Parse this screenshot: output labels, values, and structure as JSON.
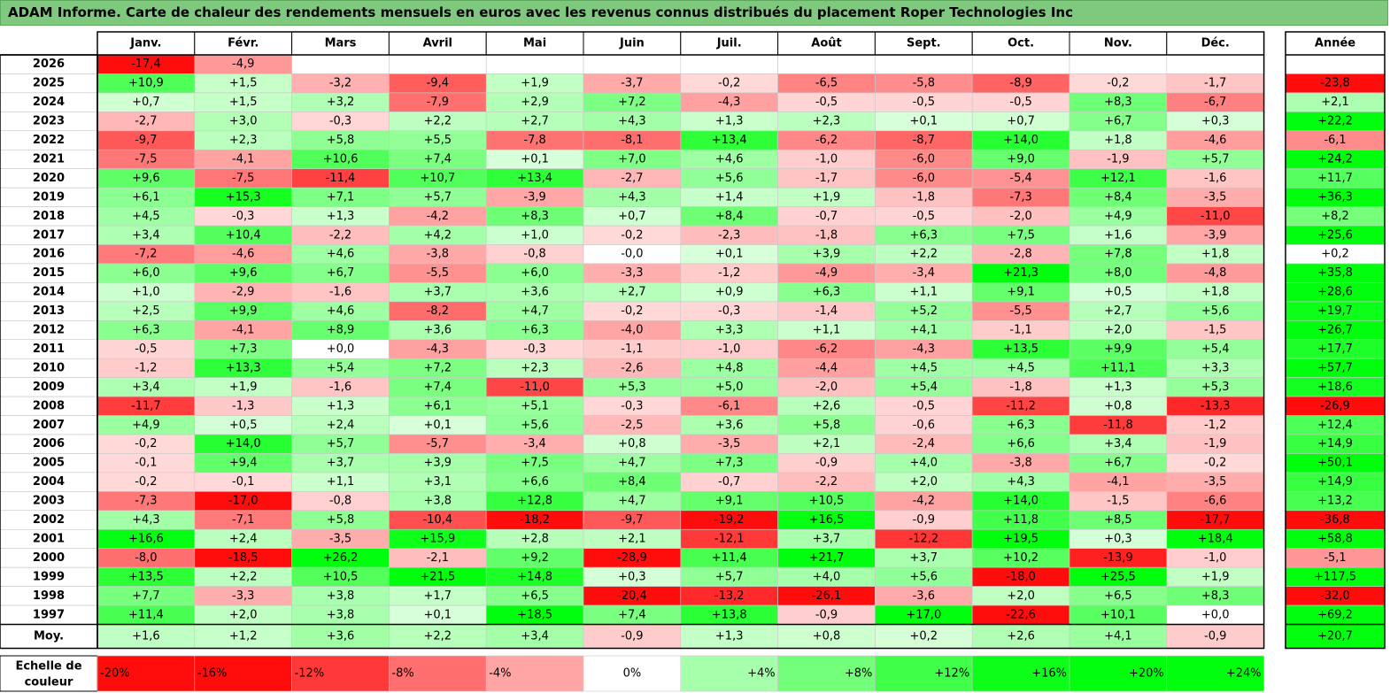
{
  "title": "ADAM Informe. Carte de chaleur des rendements mensuels en euros avec les revenus connus distribués du placement Roper Technologies Inc",
  "chart_data": {
    "type": "heatmap",
    "months": [
      "Janv.",
      "Févr.",
      "Mars",
      "Avril",
      "Mai",
      "Juin",
      "Juil.",
      "Août",
      "Sept.",
      "Oct.",
      "Nov.",
      "Déc."
    ],
    "year_header": "Année",
    "rows": [
      {
        "year": "2026",
        "values": [
          "-17,4",
          "-4,9",
          "",
          "",
          "",
          "",
          "",
          "",
          "",
          "",
          "",
          ""
        ],
        "annual": ""
      },
      {
        "year": "2025",
        "values": [
          "+10,9",
          "+1,5",
          "-3,2",
          "-9,4",
          "+1,9",
          "-3,7",
          "-0,2",
          "-6,5",
          "-5,8",
          "-8,9",
          "-0,2",
          "-1,7"
        ],
        "annual": "-23,8"
      },
      {
        "year": "2024",
        "values": [
          "+0,7",
          "+1,5",
          "+3,2",
          "-7,9",
          "+2,9",
          "+7,2",
          "-4,3",
          "-0,5",
          "-0,5",
          "-0,5",
          "+8,3",
          "-6,7"
        ],
        "annual": "+2,1"
      },
      {
        "year": "2023",
        "values": [
          "-2,7",
          "+3,0",
          "-0,3",
          "+2,2",
          "+2,7",
          "+4,3",
          "+1,3",
          "+2,3",
          "+0,1",
          "+0,7",
          "+6,7",
          "+0,3"
        ],
        "annual": "+22,2"
      },
      {
        "year": "2022",
        "values": [
          "-9,7",
          "+2,3",
          "+5,8",
          "+5,5",
          "-7,8",
          "-8,1",
          "+13,4",
          "-6,2",
          "-8,7",
          "+14,0",
          "+1,8",
          "-4,6"
        ],
        "annual": "-6,1"
      },
      {
        "year": "2021",
        "values": [
          "-7,5",
          "-4,1",
          "+10,6",
          "+7,4",
          "+0,1",
          "+7,0",
          "+4,6",
          "-1,0",
          "-6,0",
          "+9,0",
          "-1,9",
          "+5,7"
        ],
        "annual": "+24,2"
      },
      {
        "year": "2020",
        "values": [
          "+9,6",
          "-7,5",
          "-11,4",
          "+10,7",
          "+13,4",
          "-2,7",
          "+5,6",
          "-1,7",
          "-6,0",
          "-5,4",
          "+12,1",
          "-1,6"
        ],
        "annual": "+11,7"
      },
      {
        "year": "2019",
        "values": [
          "+6,1",
          "+15,3",
          "+7,1",
          "+5,7",
          "-3,9",
          "+4,3",
          "+1,4",
          "+1,9",
          "-1,8",
          "-7,3",
          "+8,4",
          "-3,5"
        ],
        "annual": "+36,3"
      },
      {
        "year": "2018",
        "values": [
          "+4,5",
          "-0,3",
          "+1,3",
          "-4,2",
          "+8,3",
          "+0,7",
          "+8,4",
          "-0,7",
          "-0,5",
          "-2,0",
          "+4,9",
          "-11,0"
        ],
        "annual": "+8,2"
      },
      {
        "year": "2017",
        "values": [
          "+3,4",
          "+10,4",
          "-2,2",
          "+4,2",
          "+1,0",
          "-0,2",
          "-2,3",
          "-1,8",
          "+6,3",
          "+7,5",
          "+1,6",
          "-3,9"
        ],
        "annual": "+25,6"
      },
      {
        "year": "2016",
        "values": [
          "-7,2",
          "-4,6",
          "+4,6",
          "-3,8",
          "-0,8",
          "-0,0",
          "+0,1",
          "+3,9",
          "+2,2",
          "-2,8",
          "+7,8",
          "+1,8"
        ],
        "annual": "+0,2"
      },
      {
        "year": "2015",
        "values": [
          "+6,0",
          "+9,6",
          "+6,7",
          "-5,5",
          "+6,0",
          "-3,3",
          "-1,2",
          "-4,9",
          "-3,4",
          "+21,3",
          "+8,0",
          "-4,8"
        ],
        "annual": "+35,8"
      },
      {
        "year": "2014",
        "values": [
          "+1,0",
          "-2,9",
          "-1,6",
          "+3,7",
          "+3,6",
          "+2,7",
          "+0,9",
          "+6,3",
          "+1,1",
          "+9,1",
          "+0,5",
          "+1,8"
        ],
        "annual": "+28,6"
      },
      {
        "year": "2013",
        "values": [
          "+2,5",
          "+9,9",
          "+4,6",
          "-8,2",
          "+4,7",
          "-0,2",
          "-0,3",
          "-1,4",
          "+5,2",
          "-5,5",
          "+2,7",
          "+5,6"
        ],
        "annual": "+19,7"
      },
      {
        "year": "2012",
        "values": [
          "+6,3",
          "-4,1",
          "+8,9",
          "+3,6",
          "+6,3",
          "-4,0",
          "+3,3",
          "+1,1",
          "+4,1",
          "-1,1",
          "+2,0",
          "-1,5"
        ],
        "annual": "+26,7"
      },
      {
        "year": "2011",
        "values": [
          "-0,5",
          "+7,3",
          "+0,0",
          "-4,3",
          "-0,3",
          "-1,1",
          "-1,0",
          "-6,2",
          "-4,3",
          "+13,5",
          "+9,9",
          "+5,4"
        ],
        "annual": "+17,7"
      },
      {
        "year": "2010",
        "values": [
          "-1,2",
          "+13,3",
          "+5,4",
          "+7,2",
          "+2,3",
          "-2,6",
          "+4,8",
          "-4,4",
          "+4,5",
          "+4,5",
          "+11,1",
          "+3,3"
        ],
        "annual": "+57,7"
      },
      {
        "year": "2009",
        "values": [
          "+3,4",
          "+1,9",
          "-1,6",
          "+7,4",
          "-11,0",
          "+5,3",
          "+5,0",
          "-2,0",
          "+5,4",
          "-1,8",
          "+1,3",
          "+5,3"
        ],
        "annual": "+18,6"
      },
      {
        "year": "2008",
        "values": [
          "-11,7",
          "-1,3",
          "+1,3",
          "+6,1",
          "+5,1",
          "-0,3",
          "-6,1",
          "+2,6",
          "-0,5",
          "-11,2",
          "+0,8",
          "-13,3"
        ],
        "annual": "-26,9"
      },
      {
        "year": "2007",
        "values": [
          "+4,9",
          "+0,5",
          "+2,4",
          "+0,1",
          "+5,6",
          "-2,5",
          "+3,6",
          "+5,8",
          "-0,6",
          "+6,3",
          "-11,8",
          "-1,2"
        ],
        "annual": "+12,4"
      },
      {
        "year": "2006",
        "values": [
          "-0,2",
          "+14,0",
          "+5,7",
          "-5,7",
          "-3,4",
          "+0,8",
          "-3,5",
          "+2,1",
          "-2,4",
          "+6,6",
          "+3,4",
          "-1,9"
        ],
        "annual": "+14,9"
      },
      {
        "year": "2005",
        "values": [
          "-0,1",
          "+9,4",
          "+3,7",
          "+3,9",
          "+7,5",
          "+4,7",
          "+7,3",
          "-0,9",
          "+4,0",
          "-3,8",
          "+6,7",
          "-0,2"
        ],
        "annual": "+50,1"
      },
      {
        "year": "2004",
        "values": [
          "-0,2",
          "-0,1",
          "+1,1",
          "+3,1",
          "+6,6",
          "+8,4",
          "-0,7",
          "-2,2",
          "+2,0",
          "+4,3",
          "-4,1",
          "-3,5"
        ],
        "annual": "+14,9"
      },
      {
        "year": "2003",
        "values": [
          "-7,3",
          "-17,0",
          "-0,8",
          "+3,8",
          "+12,8",
          "+4,7",
          "+9,1",
          "+10,5",
          "-4,2",
          "+14,0",
          "-1,5",
          "-6,6"
        ],
        "annual": "+13,2"
      },
      {
        "year": "2002",
        "values": [
          "+4,3",
          "-7,1",
          "+5,8",
          "-10,4",
          "-18,2",
          "-9,7",
          "-19,2",
          "+16,5",
          "-0,9",
          "+11,8",
          "+8,5",
          "-17,7"
        ],
        "annual": "-36,8"
      },
      {
        "year": "2001",
        "values": [
          "+16,6",
          "+2,4",
          "-3,5",
          "+15,9",
          "+2,8",
          "+2,1",
          "-12,1",
          "+3,7",
          "-12,2",
          "+19,5",
          "+0,3",
          "+18,4"
        ],
        "annual": "+58,8"
      },
      {
        "year": "2000",
        "values": [
          "-8,0",
          "-18,5",
          "+26,2",
          "-2,1",
          "+9,2",
          "-28,9",
          "+11,4",
          "+21,7",
          "+3,7",
          "+10,2",
          "-13,9",
          "-1,0"
        ],
        "annual": "-5,1"
      },
      {
        "year": "1999",
        "values": [
          "+13,5",
          "+2,2",
          "+10,5",
          "+21,5",
          "+14,8",
          "+0,3",
          "+5,7",
          "+4,0",
          "+5,6",
          "-18,0",
          "+25,5",
          "+1,9"
        ],
        "annual": "+117,5"
      },
      {
        "year": "1998",
        "values": [
          "+7,7",
          "-3,3",
          "+3,8",
          "+1,7",
          "+6,5",
          "-20,4",
          "-13,2",
          "-26,1",
          "-3,6",
          "+2,0",
          "+6,5",
          "+8,3"
        ],
        "annual": "-32,0"
      },
      {
        "year": "1997",
        "values": [
          "+11,4",
          "+2,0",
          "+3,8",
          "+0,1",
          "+18,5",
          "+7,4",
          "+13,8",
          "-0,9",
          "+17,0",
          "-22,6",
          "+10,1",
          "+0,0"
        ],
        "annual": "+69,2"
      }
    ],
    "average": {
      "label": "Moy.",
      "values": [
        "+1,6",
        "+1,2",
        "+3,6",
        "+2,2",
        "+3,4",
        "-0,9",
        "+1,3",
        "+0,8",
        "+0,2",
        "+2,6",
        "+4,1",
        "-0,9"
      ],
      "annual": "+20,7"
    },
    "scale": {
      "label_line1": "Echelle de",
      "label_line2": "couleur",
      "stops": [
        "-20%",
        "-16%",
        "-12%",
        "-8%",
        "-4%",
        "0%",
        "+4%",
        "+8%",
        "+12%",
        "+16%",
        "+20%",
        "+24%"
      ]
    },
    "colors": {
      "negative": "#ff0000",
      "positive": "#00ff00",
      "neutral": "#ffffff",
      "title_bg": "#7fc97f",
      "border": "#000000"
    }
  }
}
